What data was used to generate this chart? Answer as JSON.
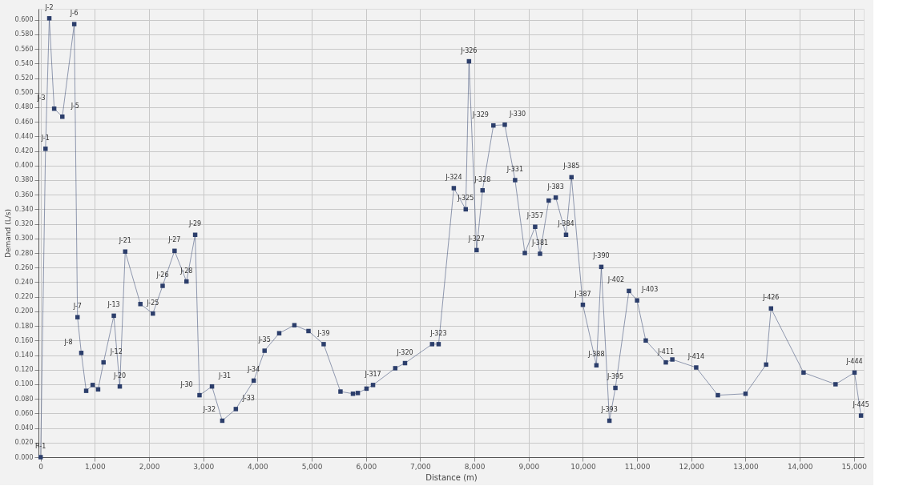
{
  "chart_data": {
    "type": "line",
    "xlabel": "Distance (m)",
    "ylabel": "Demand (L/s)",
    "x": [
      0,
      90,
      160,
      250,
      400,
      620,
      680,
      750,
      840,
      960,
      1060,
      1160,
      1350,
      1460,
      1560,
      1840,
      2070,
      2250,
      2470,
      2690,
      2850,
      2930,
      3160,
      3350,
      3600,
      3930,
      4130,
      4400,
      4680,
      4940,
      5220,
      5530,
      5760,
      5850,
      6010,
      6130,
      6540,
      6720,
      7220,
      7340,
      7620,
      7840,
      7900,
      8040,
      8150,
      8350,
      8560,
      8750,
      8930,
      9120,
      9210,
      9370,
      9500,
      9690,
      9790,
      10000,
      10250,
      10340,
      10490,
      10600,
      10850,
      11000,
      11160,
      11530,
      11650,
      12090,
      12490,
      13000,
      13380,
      13470,
      14070,
      14660,
      15010,
      15130
    ],
    "series": [
      {
        "color": "#2c3e6b",
        "values": [
          0.0,
          0.423,
          0.602,
          0.478,
          0.467,
          0.594,
          0.192,
          0.143,
          0.091,
          0.099,
          0.093,
          0.13,
          0.194,
          0.097,
          0.282,
          0.21,
          0.197,
          0.235,
          0.283,
          0.241,
          0.305,
          0.085,
          0.097,
          0.05,
          0.066,
          0.105,
          0.146,
          0.17,
          0.181,
          0.173,
          0.155,
          0.09,
          0.087,
          0.088,
          0.094,
          0.099,
          0.122,
          0.129,
          0.155,
          0.155,
          0.369,
          0.34,
          0.543,
          0.284,
          0.366,
          0.455,
          0.456,
          0.38,
          0.28,
          0.316,
          0.279,
          0.352,
          0.356,
          0.305,
          0.384,
          0.209,
          0.126,
          0.261,
          0.05,
          0.095,
          0.228,
          0.215,
          0.16,
          0.13,
          0.134,
          0.123,
          0.085,
          0.087,
          0.127,
          0.204,
          0.116,
          0.1,
          0.116,
          0.057
        ]
      }
    ],
    "xlim": [
      -40,
      15180
    ],
    "ylim": [
      0,
      0.615
    ],
    "xticks": [
      0,
      {
        "value": 1000,
        "label": "1,000"
      },
      {
        "value": 2000,
        "label": "2,000"
      },
      {
        "value": 3000,
        "label": "3,000"
      },
      {
        "value": 4000,
        "label": "4,000"
      },
      {
        "value": 5000,
        "label": "5,000"
      },
      {
        "value": 6000,
        "label": "6,000"
      },
      {
        "value": 7000,
        "label": "7,000"
      },
      {
        "value": 8000,
        "label": "8,000"
      },
      {
        "value": 9000,
        "label": "9,000"
      },
      {
        "value": 10000,
        "label": "10,000"
      },
      {
        "value": 11000,
        "label": "11,000"
      },
      {
        "value": 12000,
        "label": "12,000"
      },
      {
        "value": 13000,
        "label": "13,000"
      },
      {
        "value": 14000,
        "label": "14,000"
      },
      {
        "value": 15000,
        "label": "15,000"
      }
    ],
    "yticks": [
      {
        "value": 0,
        "label": "0.000"
      },
      {
        "value": 0.02,
        "label": "0.020"
      },
      {
        "value": 0.04,
        "label": "0.040"
      },
      {
        "value": 0.06,
        "label": "0.060"
      },
      {
        "value": 0.08,
        "label": "0.080"
      },
      {
        "value": 0.1,
        "label": "0.100"
      },
      {
        "value": 0.12,
        "label": "0.120"
      },
      {
        "value": 0.14,
        "label": "0.140"
      },
      {
        "value": 0.16,
        "label": "0.160"
      },
      {
        "value": 0.18,
        "label": "0.180"
      },
      {
        "value": 0.2,
        "label": "0.200"
      },
      {
        "value": 0.22,
        "label": "0.220"
      },
      {
        "value": 0.24,
        "label": "0.240"
      },
      {
        "value": 0.26,
        "label": "0.260"
      },
      {
        "value": 0.28,
        "label": "0.280"
      },
      {
        "value": 0.3,
        "label": "0.300"
      },
      {
        "value": 0.32,
        "label": "0.320"
      },
      {
        "value": 0.34,
        "label": "0.340"
      },
      {
        "value": 0.36,
        "label": "0.360"
      },
      {
        "value": 0.38,
        "label": "0.380"
      },
      {
        "value": 0.4,
        "label": "0.400"
      },
      {
        "value": 0.42,
        "label": "0.420"
      },
      {
        "value": 0.44,
        "label": "0.440"
      },
      {
        "value": 0.46,
        "label": "0.460"
      },
      {
        "value": 0.48,
        "label": "0.480"
      },
      {
        "value": 0.5,
        "label": "0.500"
      },
      {
        "value": 0.52,
        "label": "0.520"
      },
      {
        "value": 0.54,
        "label": "0.540"
      },
      {
        "value": 0.56,
        "label": "0.560"
      },
      {
        "value": 0.58,
        "label": "0.580"
      },
      {
        "value": 0.6,
        "label": "0.600"
      }
    ],
    "grid": true,
    "marker": "square",
    "line_style": "solid",
    "annotations": [
      {
        "text": "R-1",
        "x": 0,
        "y": 0.0
      },
      {
        "text": "J-1",
        "x": 90,
        "y": 0.423
      },
      {
        "text": "J-2",
        "x": 160,
        "y": 0.602
      },
      {
        "text": "J-3",
        "x": 250,
        "y": 0.478
      },
      {
        "text": "J-5",
        "x": 400,
        "y": 0.467
      },
      {
        "text": "J-6",
        "x": 620,
        "y": 0.594
      },
      {
        "text": "J-7",
        "x": 680,
        "y": 0.192
      },
      {
        "text": "J-8",
        "x": 750,
        "y": 0.143
      },
      {
        "text": "J-12",
        "x": 1160,
        "y": 0.13
      },
      {
        "text": "J-13",
        "x": 1350,
        "y": 0.194
      },
      {
        "text": "J-20",
        "x": 1460,
        "y": 0.097
      },
      {
        "text": "J-21",
        "x": 1560,
        "y": 0.282
      },
      {
        "text": "J-25",
        "x": 2070,
        "y": 0.197
      },
      {
        "text": "J-26",
        "x": 2250,
        "y": 0.235
      },
      {
        "text": "J-27",
        "x": 2470,
        "y": 0.283
      },
      {
        "text": "J-28",
        "x": 2690,
        "y": 0.241
      },
      {
        "text": "J-29",
        "x": 2850,
        "y": 0.305
      },
      {
        "text": "J-30",
        "x": 2930,
        "y": 0.085
      },
      {
        "text": "J-31",
        "x": 3160,
        "y": 0.097
      },
      {
        "text": "J-32",
        "x": 3350,
        "y": 0.05
      },
      {
        "text": "J-33",
        "x": 3600,
        "y": 0.066
      },
      {
        "text": "J-34",
        "x": 3930,
        "y": 0.105
      },
      {
        "text": "J-35",
        "x": 4130,
        "y": 0.146
      },
      {
        "text": "J-39",
        "x": 5220,
        "y": 0.155
      },
      {
        "text": "J-317",
        "x": 6130,
        "y": 0.099
      },
      {
        "text": "J-320",
        "x": 6720,
        "y": 0.129
      },
      {
        "text": "J-323",
        "x": 7340,
        "y": 0.155
      },
      {
        "text": "J-324",
        "x": 7620,
        "y": 0.369
      },
      {
        "text": "J-325",
        "x": 7840,
        "y": 0.34
      },
      {
        "text": "J-326",
        "x": 7900,
        "y": 0.543
      },
      {
        "text": "J-327",
        "x": 8040,
        "y": 0.284
      },
      {
        "text": "J-328",
        "x": 8150,
        "y": 0.366
      },
      {
        "text": "J-329",
        "x": 8350,
        "y": 0.455
      },
      {
        "text": "J-330",
        "x": 8560,
        "y": 0.456
      },
      {
        "text": "J-331",
        "x": 8750,
        "y": 0.38
      },
      {
        "text": "J-357",
        "x": 9120,
        "y": 0.316
      },
      {
        "text": "J-381",
        "x": 9210,
        "y": 0.279
      },
      {
        "text": "J-383",
        "x": 9500,
        "y": 0.356
      },
      {
        "text": "J-384",
        "x": 9690,
        "y": 0.305
      },
      {
        "text": "J-385",
        "x": 9790,
        "y": 0.384
      },
      {
        "text": "J-387",
        "x": 10000,
        "y": 0.209
      },
      {
        "text": "J-388",
        "x": 10250,
        "y": 0.126
      },
      {
        "text": "J-390",
        "x": 10340,
        "y": 0.261
      },
      {
        "text": "J-393",
        "x": 10490,
        "y": 0.05
      },
      {
        "text": "J-395",
        "x": 10600,
        "y": 0.095
      },
      {
        "text": "J-402",
        "x": 10850,
        "y": 0.228
      },
      {
        "text": "J-403",
        "x": 11000,
        "y": 0.215
      },
      {
        "text": "J-411",
        "x": 11530,
        "y": 0.13
      },
      {
        "text": "J-414",
        "x": 12090,
        "y": 0.123
      },
      {
        "text": "J-426",
        "x": 13470,
        "y": 0.204
      },
      {
        "text": "J-444",
        "x": 15010,
        "y": 0.116
      },
      {
        "text": "J-445",
        "x": 15130,
        "y": 0.057
      }
    ]
  }
}
